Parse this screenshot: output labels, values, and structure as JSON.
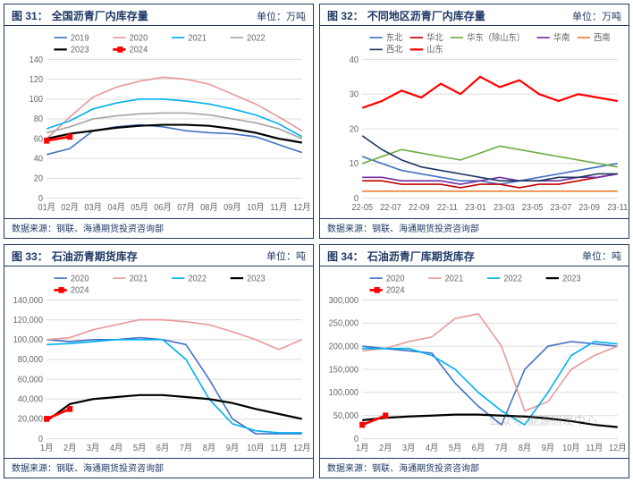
{
  "panels": [
    {
      "id": "p31",
      "fig_label": "图 31：",
      "title": "全国沥青厂内库存量",
      "unit": "单位：万吨",
      "source": "数据来源：钢联、海通期货投资咨询部",
      "chart": {
        "type": "line",
        "ylim": [
          0,
          140
        ],
        "ytick_step": 20,
        "xticks": [
          "01月",
          "02月",
          "03月",
          "04月",
          "05月",
          "06月",
          "07月",
          "08月",
          "09月",
          "10月",
          "11月",
          "12月"
        ],
        "background_color": "#ffffff",
        "grid_color": "#e0e0e0",
        "label_fontsize": 10,
        "legend_pos": "top",
        "series": [
          {
            "name": "2019",
            "color": "#4472c4",
            "width": 1.5,
            "values": [
              44,
              50,
              68,
              72,
              74,
              72,
              68,
              66,
              65,
              62,
              54,
              46
            ]
          },
          {
            "name": "2020",
            "color": "#e89a9a",
            "width": 1.5,
            "values": [
              60,
              82,
              102,
              112,
              118,
              122,
              120,
              115,
              105,
              95,
              82,
              68
            ]
          },
          {
            "name": "2021",
            "color": "#00b0f0",
            "width": 1.5,
            "values": [
              70,
              78,
              90,
              96,
              100,
              100,
              98,
              95,
              90,
              84,
              75,
              62
            ]
          },
          {
            "name": "2022",
            "color": "#a6a6a6",
            "width": 1.5,
            "values": [
              66,
              72,
              80,
              83,
              85,
              86,
              86,
              84,
              80,
              76,
              70,
              60
            ]
          },
          {
            "name": "2023",
            "color": "#000000",
            "width": 2,
            "values": [
              60,
              65,
              68,
              71,
              73,
              74,
              74,
              73,
              70,
              66,
              60,
              56
            ]
          },
          {
            "name": "2024",
            "color": "#ff0000",
            "width": 2.5,
            "marker": "square",
            "values": [
              58,
              62,
              null,
              null,
              null,
              null,
              null,
              null,
              null,
              null,
              null,
              null
            ]
          }
        ]
      }
    },
    {
      "id": "p32",
      "fig_label": "图 32：",
      "title": "不同地区沥青厂内库存量",
      "unit": "单位：万吨",
      "source": "数据来源：钢联、海通期货投资咨询部",
      "chart": {
        "type": "line",
        "ylim": [
          0,
          40
        ],
        "ytick_step": 10,
        "xticks": [
          "22-05",
          "22-07",
          "22-09",
          "22-11",
          "23-01",
          "23-03",
          "23-05",
          "23-07",
          "23-09",
          "23-11"
        ],
        "background_color": "#ffffff",
        "grid_color": "#e0e0e0",
        "label_fontsize": 10,
        "legend_pos": "top",
        "series": [
          {
            "name": "东北",
            "color": "#4472c4",
            "width": 1.5,
            "values": [
              12,
              10,
              8,
              7,
              6,
              5,
              5,
              4,
              5,
              6,
              7,
              8,
              9,
              10
            ]
          },
          {
            "name": "华北",
            "color": "#c00000",
            "width": 1.5,
            "values": [
              5,
              5,
              4,
              4,
              4,
              3,
              4,
              4,
              3,
              4,
              4,
              5,
              6,
              7
            ]
          },
          {
            "name": "华东（除山东）",
            "color": "#70ad47",
            "width": 1.5,
            "values": [
              10,
              12,
              14,
              13,
              12,
              11,
              13,
              15,
              14,
              13,
              12,
              11,
              10,
              9
            ]
          },
          {
            "name": "华南",
            "color": "#7030a0",
            "width": 1.5,
            "values": [
              6,
              6,
              5,
              5,
              5,
              4,
              5,
              6,
              5,
              5,
              5,
              6,
              6,
              7
            ]
          },
          {
            "name": "西南",
            "color": "#ed7d31",
            "width": 1.5,
            "values": [
              2,
              2,
              2,
              2,
              2,
              2,
              2,
              2,
              2,
              2,
              2,
              2,
              2,
              2
            ]
          },
          {
            "name": "西北",
            "color": "#1f3864",
            "width": 1.5,
            "values": [
              18,
              14,
              11,
              9,
              8,
              7,
              6,
              5,
              5,
              5,
              6,
              6,
              7,
              7
            ]
          },
          {
            "name": "山东",
            "color": "#ff0000",
            "width": 2,
            "values": [
              26,
              28,
              31,
              29,
              33,
              30,
              35,
              32,
              34,
              30,
              28,
              30,
              29,
              28
            ]
          }
        ]
      }
    },
    {
      "id": "p33",
      "fig_label": "图 33：",
      "title": "石油沥青期货库存",
      "unit": "单位：吨",
      "source": "数据来源：钢联、海通期货投资咨询部",
      "chart": {
        "type": "line",
        "ylim": [
          0,
          140000
        ],
        "ytick_step": 20000,
        "yformat": "comma",
        "xticks": [
          "1月",
          "2月",
          "3月",
          "4月",
          "5月",
          "6月",
          "7月",
          "8月",
          "9月",
          "10月",
          "11月",
          "12月"
        ],
        "background_color": "#ffffff",
        "grid_color": "#e0e0e0",
        "label_fontsize": 10,
        "legend_pos": "top",
        "series": [
          {
            "name": "2020",
            "color": "#4472c4",
            "width": 1.5,
            "values": [
              100000,
              98000,
              100000,
              100000,
              102000,
              100000,
              95000,
              60000,
              20000,
              5000,
              5000,
              5000
            ]
          },
          {
            "name": "2021",
            "color": "#e89a9a",
            "width": 1.5,
            "values": [
              100000,
              102000,
              110000,
              115000,
              120000,
              120000,
              118000,
              115000,
              108000,
              100000,
              90000,
              100000
            ]
          },
          {
            "name": "2022",
            "color": "#00b0f0",
            "width": 1.5,
            "values": [
              95000,
              96000,
              98000,
              100000,
              100000,
              100000,
              80000,
              40000,
              15000,
              8000,
              6000,
              6000
            ]
          },
          {
            "name": "2023",
            "color": "#000000",
            "width": 2,
            "values": [
              18000,
              35000,
              40000,
              42000,
              44000,
              44000,
              42000,
              40000,
              36000,
              30000,
              25000,
              20000
            ]
          },
          {
            "name": "2024",
            "color": "#ff0000",
            "width": 2.5,
            "marker": "square",
            "values": [
              20000,
              30000,
              null,
              null,
              null,
              null,
              null,
              null,
              null,
              null,
              null,
              null
            ]
          }
        ]
      }
    },
    {
      "id": "p34",
      "fig_label": "图 34：",
      "title": "石油沥青厂库期货库存",
      "unit": "单位：吨",
      "source": "数据来源：钢联、海通期货投资咨询部",
      "chart": {
        "type": "line",
        "ylim": [
          0,
          300000
        ],
        "ytick_step": 50000,
        "yformat": "comma",
        "xticks": [
          "1月",
          "2月",
          "3月",
          "4月",
          "5月",
          "6月",
          "7月",
          "8月",
          "9月",
          "10月",
          "11月",
          "12月"
        ],
        "background_color": "#ffffff",
        "grid_color": "#e0e0e0",
        "label_fontsize": 10,
        "legend_pos": "top",
        "series": [
          {
            "name": "2020",
            "color": "#4472c4",
            "width": 1.5,
            "values": [
              200000,
              195000,
              190000,
              185000,
              120000,
              70000,
              30000,
              150000,
              200000,
              210000,
              205000,
              200000
            ]
          },
          {
            "name": "2021",
            "color": "#e89a9a",
            "width": 1.5,
            "values": [
              190000,
              195000,
              210000,
              220000,
              260000,
              270000,
              200000,
              60000,
              80000,
              150000,
              180000,
              200000
            ]
          },
          {
            "name": "2022",
            "color": "#00b0f0",
            "width": 1.5,
            "values": [
              195000,
              195000,
              195000,
              180000,
              150000,
              100000,
              60000,
              30000,
              100000,
              180000,
              210000,
              205000
            ]
          },
          {
            "name": "2023",
            "color": "#000000",
            "width": 2,
            "values": [
              40000,
              45000,
              48000,
              50000,
              52000,
              52000,
              50000,
              48000,
              44000,
              38000,
              30000,
              25000
            ]
          },
          {
            "name": "2024",
            "color": "#ff0000",
            "width": 2.5,
            "marker": "square",
            "values": [
              30000,
              50000,
              null,
              null,
              null,
              null,
              null,
              null,
              null,
              null,
              null,
              null
            ]
          }
        ]
      }
    }
  ],
  "watermark": "公众号·能源研发中心"
}
